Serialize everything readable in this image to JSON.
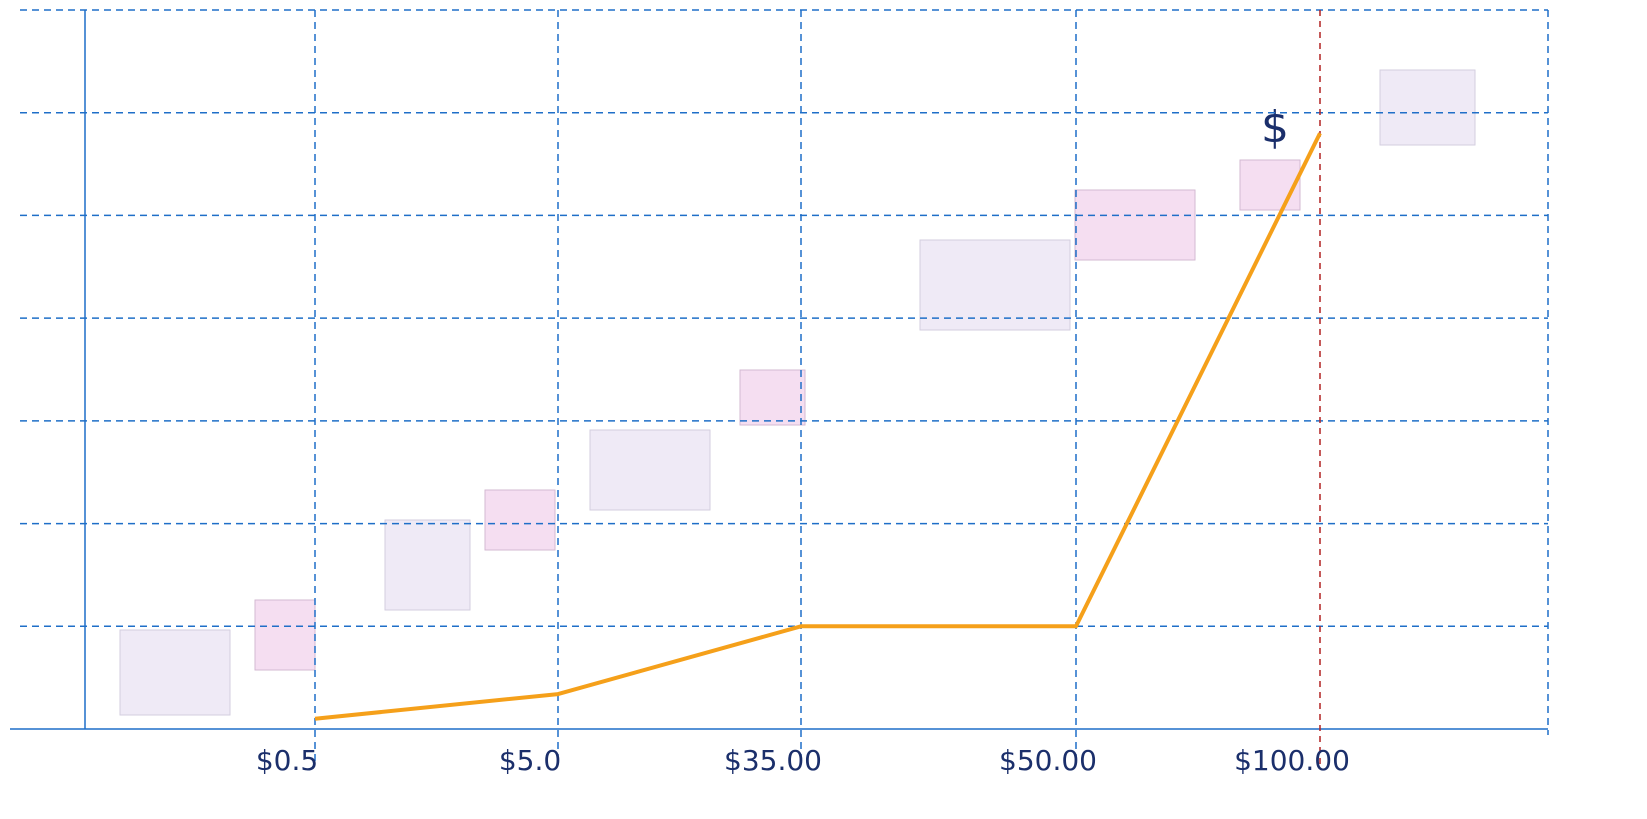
{
  "chart_data": {
    "type": "line",
    "categories": [
      "$0.5",
      "$5.0",
      "$35.00",
      "$50.00",
      "$100.00"
    ],
    "series": [
      {
        "color": "#f5a01a",
        "values": [
          0.1,
          0.34,
          1,
          1,
          5.8
        ]
      }
    ],
    "ylim": [
      0,
      7
    ],
    "yticks": [
      0,
      1,
      2,
      3,
      4,
      5,
      6,
      7
    ],
    "grid": true,
    "annotations": [
      "$"
    ]
  }
}
